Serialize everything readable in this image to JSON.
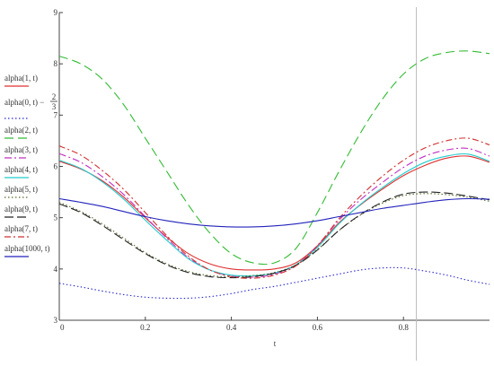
{
  "chart_data": {
    "type": "line",
    "xlabel": "t",
    "ylabel": "",
    "xlim": [
      0,
      1
    ],
    "ylim": [
      3,
      9
    ],
    "x_ticks": [
      {
        "value": 0,
        "label": "0"
      },
      {
        "value": 0.2,
        "label": "0.2"
      },
      {
        "value": 0.4,
        "label": "0.4"
      },
      {
        "value": 0.6,
        "label": "0.6"
      },
      {
        "value": 0.8,
        "label": "0.8"
      }
    ],
    "y_ticks": [
      {
        "value": 3,
        "label": "3"
      },
      {
        "value": 4,
        "label": "4"
      },
      {
        "value": 5,
        "label": "5"
      },
      {
        "value": 6,
        "label": "6"
      },
      {
        "value": 7,
        "label": "7"
      },
      {
        "value": 8,
        "label": "8"
      },
      {
        "value": 9,
        "label": "9"
      }
    ],
    "vertical_marker_x": 0.83,
    "x": [
      0,
      0.05,
      0.1,
      0.15,
      0.2,
      0.25,
      0.3,
      0.35,
      0.4,
      0.45,
      0.5,
      0.55,
      0.6,
      0.65,
      0.7,
      0.75,
      0.8,
      0.85,
      0.9,
      0.95,
      1.0
    ],
    "series": [
      {
        "name": "alpha(1, t)",
        "legend_lines": [
          "alpha(1, t)"
        ],
        "color": "#e03030",
        "dash": "",
        "values": [
          6.1,
          5.95,
          5.72,
          5.4,
          5.0,
          4.62,
          4.3,
          4.1,
          4.0,
          3.98,
          4.0,
          4.12,
          4.45,
          4.9,
          5.25,
          5.55,
          5.82,
          6.02,
          6.16,
          6.2,
          6.08
        ]
      },
      {
        "name": "alpha(0, t) - 2/3",
        "legend_lines": [
          "alpha(0, t) −",
          "2",
          "3"
        ],
        "color": "#2a2acc",
        "dash": "1.5,2.5",
        "values": [
          3.72,
          3.65,
          3.57,
          3.5,
          3.45,
          3.43,
          3.43,
          3.46,
          3.52,
          3.6,
          3.66,
          3.74,
          3.82,
          3.9,
          3.98,
          4.02,
          4.02,
          3.96,
          3.88,
          3.78,
          3.7
        ]
      },
      {
        "name": "alpha(2, t)",
        "legend_lines": [
          "alpha(2, t)"
        ],
        "color": "#33bb33",
        "dash": "10,5",
        "values": [
          8.15,
          8.0,
          7.7,
          7.2,
          6.55,
          5.9,
          5.25,
          4.7,
          4.3,
          4.12,
          4.12,
          4.4,
          5.1,
          5.9,
          6.65,
          7.3,
          7.8,
          8.1,
          8.22,
          8.25,
          8.2
        ]
      },
      {
        "name": "alpha(3, t)",
        "legend_lines": [
          "alpha(3, t)"
        ],
        "color": "#c030c0",
        "dash": "8,3,2,3",
        "values": [
          6.25,
          6.08,
          5.8,
          5.45,
          5.02,
          4.6,
          4.22,
          3.98,
          3.86,
          3.84,
          3.9,
          4.08,
          4.46,
          4.95,
          5.35,
          5.68,
          5.98,
          6.2,
          6.32,
          6.35,
          6.2
        ]
      },
      {
        "name": "alpha(4, t)",
        "legend_lines": [
          "alpha(4, t)"
        ],
        "color": "#22cccc",
        "dash": "",
        "values": [
          6.12,
          5.96,
          5.7,
          5.36,
          4.95,
          4.56,
          4.2,
          3.98,
          3.88,
          3.87,
          3.92,
          4.08,
          4.42,
          4.88,
          5.26,
          5.58,
          5.86,
          6.08,
          6.2,
          6.24,
          6.1
        ]
      },
      {
        "name": "alpha(5, t)",
        "legend_lines": [
          "alpha(5, t)"
        ],
        "color": "#556b2f",
        "dash": "1.5,2.5",
        "values": [
          5.3,
          5.12,
          4.88,
          4.6,
          4.32,
          4.1,
          3.95,
          3.87,
          3.85,
          3.87,
          3.93,
          4.08,
          4.38,
          4.75,
          5.05,
          5.28,
          5.43,
          5.47,
          5.45,
          5.4,
          5.32
        ]
      },
      {
        "name": "alpha(9, t)",
        "legend_lines": [
          "alpha(9, t)"
        ],
        "color": "#222222",
        "dash": "10,4",
        "values": [
          5.27,
          5.1,
          4.85,
          4.57,
          4.3,
          4.08,
          3.93,
          3.85,
          3.83,
          3.85,
          3.92,
          4.07,
          4.37,
          4.75,
          5.06,
          5.3,
          5.46,
          5.5,
          5.48,
          5.42,
          5.35
        ]
      },
      {
        "name": "alpha(7, t)",
        "legend_lines": [
          "alpha(7, t)"
        ],
        "color": "#d03030",
        "dash": "7,3,2,3",
        "values": [
          6.4,
          6.22,
          5.92,
          5.55,
          5.1,
          4.65,
          4.25,
          3.98,
          3.85,
          3.82,
          3.88,
          4.06,
          4.45,
          4.98,
          5.42,
          5.8,
          6.12,
          6.36,
          6.5,
          6.55,
          6.42
        ]
      },
      {
        "name": "alpha(1000, t)",
        "legend_lines": [
          "alpha(1000, t)"
        ],
        "color": "#2222bb",
        "dash": "",
        "values": [
          5.37,
          5.3,
          5.22,
          5.12,
          5.02,
          4.94,
          4.88,
          4.84,
          4.82,
          4.82,
          4.84,
          4.88,
          4.94,
          5.02,
          5.1,
          5.18,
          5.24,
          5.3,
          5.35,
          5.37,
          5.36
        ]
      }
    ]
  }
}
